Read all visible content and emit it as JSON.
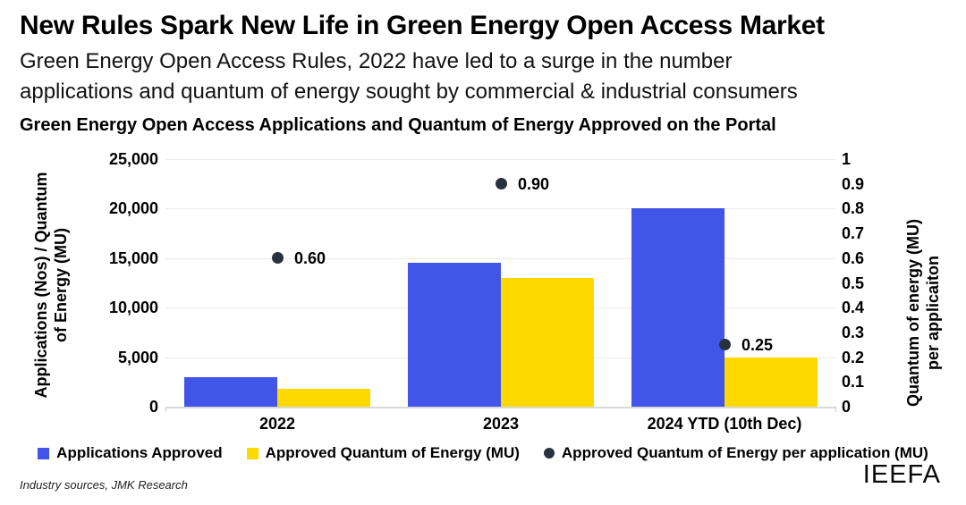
{
  "header": {
    "title": "New Rules Spark New Life in Green Energy Open Access Market",
    "subtitle_lines": [
      "Green Energy Open Access Rules, 2022 have led to a surge in the number",
      "applications and quantum of energy sought by commercial & industrial consumers"
    ]
  },
  "chart_data": {
    "type": "bar",
    "title": "Green Energy Open Access Applications and Quantum of Energy Approved on the Portal",
    "categories": [
      "2022",
      "2023",
      "2024 YTD (10th Dec)"
    ],
    "series": [
      {
        "name": "Applications Approved",
        "type": "bar",
        "axis": "left",
        "marker": "square",
        "color": "#4155E8",
        "values": [
          3000,
          14500,
          20000
        ]
      },
      {
        "name": "Approved Quantum of Energy (MU)",
        "type": "bar",
        "axis": "left",
        "marker": "square",
        "color": "#FED900",
        "values": [
          1800,
          13000,
          5000
        ]
      },
      {
        "name": "Approved Quantum of Energy per application (MU)",
        "type": "scatter",
        "axis": "right",
        "marker": "circle",
        "color": "#28323E",
        "values": [
          0.6,
          0.9,
          0.25
        ],
        "labels": [
          "0.60",
          "0.90",
          "0.25"
        ]
      }
    ],
    "left_axis": {
      "label_lines": [
        "Applications (Nos) / Quantum",
        "of Energy (MU)"
      ],
      "ticks": [
        "0",
        "5,000",
        "10,000",
        "15,000",
        "20,000",
        "25,000"
      ],
      "min": 0,
      "max": 25000
    },
    "right_axis": {
      "label_lines": [
        "Quantum of energy (MU)",
        "per applicaiton"
      ],
      "ticks": [
        "0",
        "0.1",
        "0.2",
        "0.3",
        "0.4",
        "0.5",
        "0.6",
        "0.7",
        "0.8",
        "0.9",
        "1"
      ],
      "min": 0,
      "max": 1
    },
    "grid": true,
    "legend_position": "bottom"
  },
  "footer": {
    "source": "Industry sources, JMK Research",
    "brand": "IEEFA"
  }
}
